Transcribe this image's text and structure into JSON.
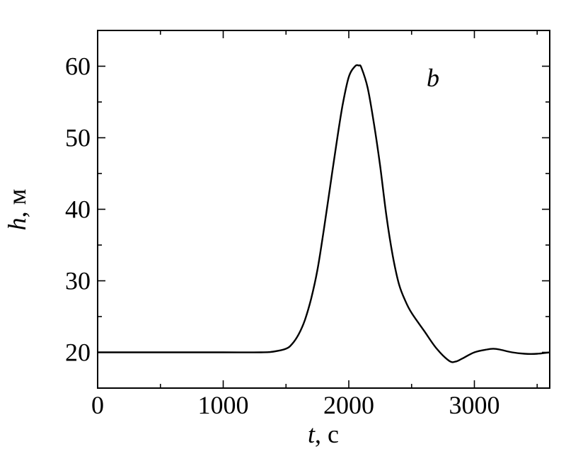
{
  "chart_data": {
    "type": "line",
    "panel_label": "b",
    "xlabel": {
      "var": "t",
      "unit": ", с"
    },
    "ylabel": {
      "var": "h",
      "unit": ", м"
    },
    "xlim": [
      0,
      3600
    ],
    "ylim": [
      15,
      65
    ],
    "x_major_ticks": [
      0,
      1000,
      2000,
      3000
    ],
    "x_minor_ticks": [
      500,
      1500,
      2500,
      3500
    ],
    "y_major_ticks": [
      20,
      30,
      40,
      50,
      60
    ],
    "y_minor_ticks": [
      25,
      35,
      45,
      55
    ],
    "x_tick_labels": [
      "0",
      "1000",
      "2000",
      "3000"
    ],
    "y_tick_labels": [
      "20",
      "30",
      "40",
      "50",
      "60"
    ],
    "grid": false,
    "series": [
      {
        "x": [
          0,
          500,
          1000,
          1300,
          1400,
          1500,
          1550,
          1600,
          1650,
          1700,
          1750,
          1800,
          1850,
          1900,
          1950,
          2000,
          2050,
          2080,
          2100,
          2150,
          2200,
          2250,
          2300,
          2350,
          2400,
          2450,
          2500,
          2600,
          2700,
          2800,
          2850,
          2900,
          3000,
          3100,
          3150,
          3200,
          3300,
          3400,
          3500,
          3600
        ],
        "y": [
          20,
          20,
          20,
          20,
          20.1,
          20.5,
          21.2,
          22.5,
          24.5,
          27.5,
          31.5,
          37,
          43,
          49,
          54.5,
          58.5,
          60,
          60.1,
          59.8,
          57,
          52,
          46,
          39,
          33.5,
          29.5,
          27.2,
          25.5,
          23,
          20.5,
          18.8,
          18.7,
          19.1,
          20,
          20.4,
          20.5,
          20.4,
          20,
          19.8,
          19.8,
          20
        ]
      }
    ]
  }
}
